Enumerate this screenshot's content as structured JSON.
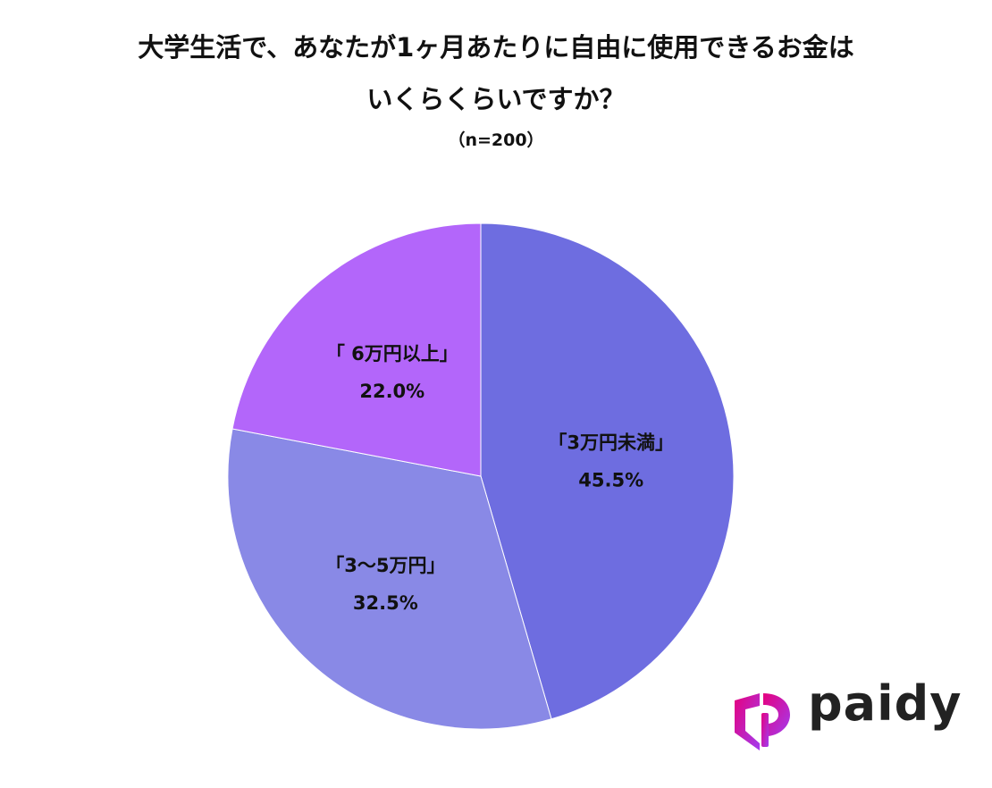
{
  "title_line1": "大学生活で、あなたが1ヶ月あたりに自由に使用できるお金は",
  "title_line2": "いくらくらいですか？",
  "subtitle": "（n=200）",
  "logo": {
    "text": "paidy",
    "icon": "paidy-logo-icon",
    "gradient_colors": [
      "#e6007e",
      "#a23cf0"
    ]
  },
  "chart_data": {
    "type": "pie",
    "title": "大学生活で、あなたが1ヶ月あたりに自由に使用できるお金はいくらくらいですか？",
    "subtitle": "（n=200）",
    "start": "12 o'clock, clockwise",
    "slices": [
      {
        "label": "「3万円未満」",
        "value": 45.5,
        "value_label": "45.5%",
        "color": "#6e6de0"
      },
      {
        "label": "「3〜5万円」",
        "value": 32.5,
        "value_label": "32.5%",
        "color": "#8989e6"
      },
      {
        "label": "「 6万円以上」",
        "value": 22.0,
        "value_label": "22.0%",
        "color": "#b366fa"
      }
    ]
  }
}
